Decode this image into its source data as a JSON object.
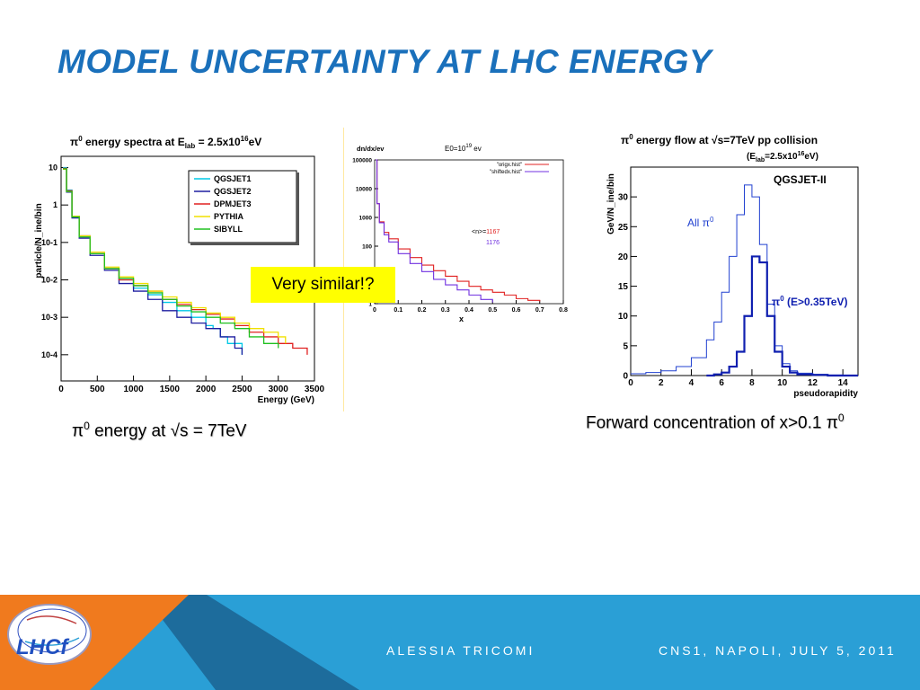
{
  "slide": {
    "title": "MODEL UNCERTAINTY AT LHC ENERGY",
    "caption_left": {
      "pre": "π",
      "sup": "0",
      "post": " energy at √s = 7TeV"
    },
    "caption_right": {
      "pre": "Forward concentration of x>0.1 π",
      "sup": "0"
    },
    "callout": "Very similar!?",
    "footer": {
      "author": "ALESSIA TRICOMI",
      "event": "CNS1, NAPOLI, JULY 5, 2011",
      "logo_text": "LHCf"
    },
    "colors": {
      "title": "#1a70bb",
      "footer_main": "#2a9fd6",
      "footer_dark": "#1d6c9c",
      "footer_orange": "#f07a1e"
    }
  },
  "chart_data": [
    {
      "type": "line",
      "title_pre": "π",
      "title_sup": "0",
      "title_mid": " energy spectra at E",
      "title_sub": "lab",
      "title_post": " = 2.5x10",
      "title_sup2": "16",
      "title_end": "eV",
      "xlabel": "Energy (GeV)",
      "ylabel": "particle/N_ine/bin",
      "xlim": [
        0,
        3500
      ],
      "ylim_log10": [
        -4.7,
        1.3
      ],
      "yscale": "log",
      "xticks": [
        "0",
        "500",
        "1000",
        "1500",
        "2000",
        "2500",
        "3000",
        "3500"
      ],
      "yticks": [
        "10",
        "1",
        "10-1",
        "10-2",
        "10-3",
        "10-4"
      ],
      "legend_position": "top-right",
      "series": [
        {
          "name": "QGSJET1",
          "color": "#00c8e6",
          "x": [
            25,
            75,
            150,
            250,
            400,
            600,
            800,
            1000,
            1200,
            1400,
            1600,
            1800,
            2000,
            2100,
            2200,
            2300,
            2400,
            2500
          ],
          "y": [
            10,
            2.5,
            0.5,
            0.15,
            0.05,
            0.02,
            0.01,
            0.006,
            0.004,
            0.0025,
            0.0015,
            0.001,
            0.0006,
            0.0005,
            0.0003,
            0.0002,
            0.0002,
            0.0001
          ]
        },
        {
          "name": "QGSJET2",
          "color": "#1e1ea0",
          "x": [
            25,
            75,
            150,
            250,
            400,
            600,
            800,
            1000,
            1200,
            1400,
            1600,
            1800,
            2000,
            2200,
            2400,
            2500
          ],
          "y": [
            9,
            2.2,
            0.45,
            0.13,
            0.045,
            0.018,
            0.008,
            0.005,
            0.003,
            0.0015,
            0.001,
            0.0007,
            0.0005,
            0.0003,
            0.00015,
            0.0001
          ]
        },
        {
          "name": "DPMJET3",
          "color": "#e02020",
          "x": [
            25,
            75,
            150,
            250,
            400,
            600,
            800,
            1000,
            1200,
            1400,
            1600,
            1800,
            2000,
            2200,
            2400,
            2600,
            2800,
            3000,
            3200,
            3400
          ],
          "y": [
            9.5,
            2.4,
            0.5,
            0.15,
            0.05,
            0.02,
            0.01,
            0.007,
            0.005,
            0.003,
            0.0022,
            0.0016,
            0.0012,
            0.0009,
            0.0006,
            0.0004,
            0.0003,
            0.0002,
            0.00015,
            0.0001
          ]
        },
        {
          "name": "PYTHIA",
          "color": "#f0e000",
          "x": [
            25,
            75,
            150,
            250,
            400,
            600,
            800,
            1000,
            1200,
            1400,
            1600,
            1800,
            2000,
            2200,
            2400,
            2600,
            2800,
            3000,
            3100
          ],
          "y": [
            9,
            2.3,
            0.5,
            0.15,
            0.055,
            0.022,
            0.012,
            0.008,
            0.005,
            0.0035,
            0.0025,
            0.0018,
            0.0013,
            0.001,
            0.0007,
            0.0005,
            0.0004,
            0.0003,
            0.0002
          ]
        },
        {
          "name": "SIBYLL",
          "color": "#20c020",
          "x": [
            25,
            75,
            150,
            250,
            400,
            600,
            800,
            1000,
            1200,
            1400,
            1600,
            1800,
            2000,
            2200,
            2400,
            2600,
            2800,
            3000
          ],
          "y": [
            9.2,
            2.3,
            0.48,
            0.14,
            0.05,
            0.02,
            0.011,
            0.007,
            0.0045,
            0.003,
            0.002,
            0.0014,
            0.001,
            0.0007,
            0.0005,
            0.0003,
            0.0002,
            0.00015
          ]
        }
      ]
    },
    {
      "type": "line",
      "title_pre": "E0=10",
      "title_sup": "19",
      "title_end": " ev",
      "ylabel": "dn/dx/ev",
      "xlabel": "x",
      "xlim": [
        0,
        0.8
      ],
      "ylim_log10": [
        0,
        5
      ],
      "yscale": "log",
      "xticks": [
        "0",
        "0.1",
        "0.2",
        "0.3",
        "0.4",
        "0.5",
        "0.6",
        "0.7",
        "0.8"
      ],
      "yticks": [
        "100000",
        "10000",
        "1000",
        "100",
        "10",
        "1"
      ],
      "legend_position": "top-right",
      "annotation": {
        "label": "<n>=",
        "value1": "1167",
        "value2": "1176"
      },
      "series": [
        {
          "name": "\"origx.hist\"",
          "color": "#e02020",
          "x": [
            0.005,
            0.01,
            0.02,
            0.04,
            0.06,
            0.1,
            0.15,
            0.2,
            0.25,
            0.3,
            0.35,
            0.4,
            0.45,
            0.5,
            0.55,
            0.6,
            0.65,
            0.7
          ],
          "y": [
            100000,
            3000,
            700,
            300,
            180,
            80,
            40,
            22,
            14,
            9,
            6,
            4,
            3,
            2.5,
            2,
            1.5,
            1.3,
            1.2
          ]
        },
        {
          "name": "\"shiftedx.hist\"",
          "color": "#7030e0",
          "x": [
            0.005,
            0.01,
            0.02,
            0.04,
            0.06,
            0.1,
            0.15,
            0.2,
            0.25,
            0.3,
            0.35,
            0.4,
            0.45,
            0.5
          ],
          "y": [
            100000,
            3000,
            650,
            250,
            140,
            55,
            25,
            13,
            7,
            4.5,
            3,
            2,
            1.4,
            1.1
          ]
        }
      ]
    },
    {
      "type": "line",
      "title_pre": "π",
      "title_sup": "0",
      "title_mid": " energy flow at √s=7TeV pp collision",
      "subtitle_pre": "(E",
      "subtitle_sub": "lab",
      "subtitle_post": "=2.5x10",
      "subtitle_sup": "16",
      "subtitle_end": "eV)",
      "model_label": "QGSJET-II",
      "xlabel": "pseudorapidity",
      "ylabel": "GeV/N_ine/bin",
      "xlim": [
        0,
        15
      ],
      "ylim": [
        0,
        35
      ],
      "xticks": [
        "0",
        "2",
        "4",
        "6",
        "8",
        "10",
        "12",
        "14"
      ],
      "yticks": [
        "0",
        "5",
        "10",
        "15",
        "20",
        "25",
        "30"
      ],
      "series": [
        {
          "name": "All π0",
          "label_pre": "All π",
          "label_sup": "0",
          "color": "#2040d0",
          "x": [
            0,
            1,
            2,
            3,
            4,
            5,
            5.5,
            6,
            6.5,
            7,
            7.5,
            8,
            8.5,
            9,
            9.5,
            10,
            10.5,
            11,
            12,
            13,
            14,
            15
          ],
          "y": [
            0.3,
            0.5,
            0.8,
            1.5,
            3,
            6,
            9,
            14,
            20,
            27,
            32,
            30,
            22,
            12,
            5,
            2,
            0.8,
            0.4,
            0.2,
            0.1,
            0,
            0
          ]
        },
        {
          "name": "π0 (E>0.35TeV)",
          "label_pre": "π",
          "label_sup": "0",
          "label_post": " (E>0.35TeV)",
          "color": "#1020b0",
          "x": [
            5,
            5.5,
            6,
            6.5,
            7,
            7.5,
            8,
            8.5,
            9,
            9.5,
            10,
            10.5,
            11,
            12,
            13,
            14,
            15
          ],
          "y": [
            0,
            0.2,
            0.5,
            1.5,
            4,
            10,
            20,
            19,
            10,
            4,
            1.5,
            0.5,
            0.2,
            0.1,
            0,
            0,
            0
          ]
        }
      ]
    }
  ]
}
